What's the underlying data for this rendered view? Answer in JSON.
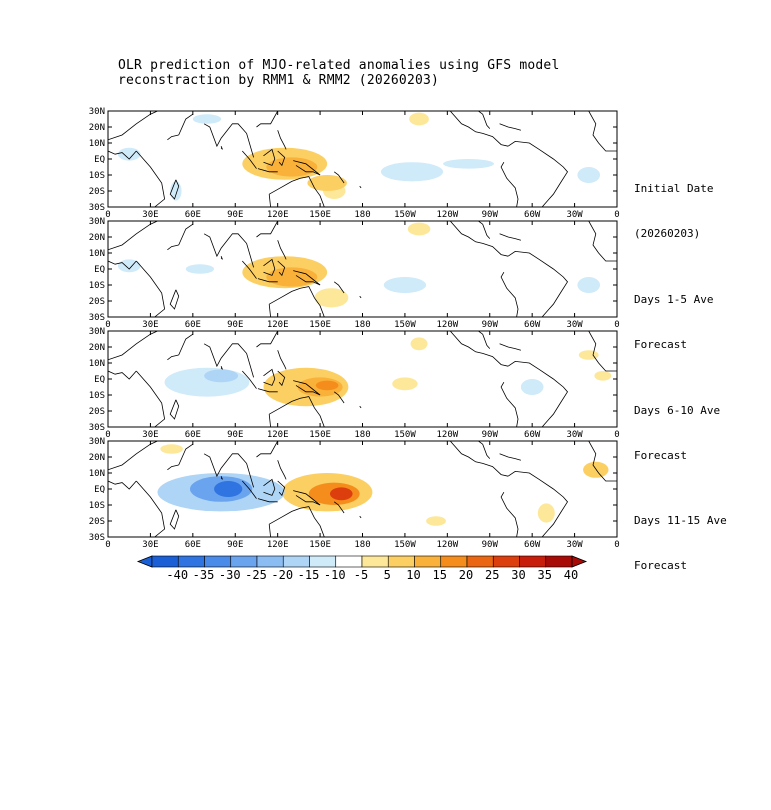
{
  "title": {
    "line1": "OLR prediction of MJO-related anomalies using GFS model",
    "line2": "reconstraction by RMM1 & RMM2 (20260203)"
  },
  "axes": {
    "lat_labels": [
      "30N",
      "20N",
      "10N",
      "EQ",
      "10S",
      "20S",
      "30S"
    ],
    "lon_labels": [
      "0",
      "30E",
      "60E",
      "90E",
      "120E",
      "150E",
      "180",
      "150W",
      "120W",
      "90W",
      "60W",
      "30W",
      "0"
    ]
  },
  "panels": [
    {
      "label_line1": "Initial Date",
      "label_line2": "(20260203)"
    },
    {
      "label_line1": "Days 1-5 Ave",
      "label_line2": "Forecast"
    },
    {
      "label_line1": "Days 6-10 Ave",
      "label_line2": "Forecast"
    },
    {
      "label_line1": "Days 11-15 Ave",
      "label_line2": "Forecast"
    }
  ],
  "colorbar": {
    "labels": [
      "-40",
      "-35",
      "-30",
      "-25",
      "-20",
      "-15",
      "-10",
      "-5",
      "5",
      "10",
      "15",
      "20",
      "25",
      "30",
      "35",
      "40"
    ],
    "colors": [
      "#1b5fd6",
      "#2f74e0",
      "#4a8ae8",
      "#6aa3ee",
      "#8bbdf2",
      "#aed4f6",
      "#cfeaf9",
      "#ffffff",
      "#fde89a",
      "#fccf63",
      "#f9b13a",
      "#f48d1c",
      "#ea6612",
      "#dc3f0d",
      "#c71d0a",
      "#a80a06"
    ]
  },
  "anomalies": [
    [
      {
        "lon": 125,
        "lat": -3,
        "rx": 30,
        "ry": 10,
        "v": 10
      },
      {
        "lon": 130,
        "lat": -5,
        "rx": 18,
        "ry": 6,
        "v": 15
      },
      {
        "lon": 155,
        "lat": -15,
        "rx": 14,
        "ry": 5,
        "v": 10
      },
      {
        "lon": 160,
        "lat": -20,
        "rx": 8,
        "ry": 5,
        "v": 5
      },
      {
        "lon": 220,
        "lat": 25,
        "rx": 7,
        "ry": 4,
        "v": 5
      },
      {
        "lon": 215,
        "lat": -8,
        "rx": 22,
        "ry": 6,
        "v": -5
      },
      {
        "lon": 255,
        "lat": -3,
        "rx": 18,
        "ry": 3,
        "v": -5
      },
      {
        "lon": 15,
        "lat": 3,
        "rx": 8,
        "ry": 4,
        "v": -5
      },
      {
        "lon": 48,
        "lat": -20,
        "rx": 4,
        "ry": 6,
        "v": -5
      },
      {
        "lon": 340,
        "lat": -10,
        "rx": 8,
        "ry": 5,
        "v": -5
      },
      {
        "lon": 70,
        "lat": 25,
        "rx": 10,
        "ry": 3,
        "v": -5
      }
    ],
    [
      {
        "lon": 125,
        "lat": -2,
        "rx": 30,
        "ry": 10,
        "v": 10
      },
      {
        "lon": 130,
        "lat": -5,
        "rx": 18,
        "ry": 6,
        "v": 15
      },
      {
        "lon": 158,
        "lat": -18,
        "rx": 12,
        "ry": 6,
        "v": 5
      },
      {
        "lon": 220,
        "lat": 25,
        "rx": 8,
        "ry": 4,
        "v": 5
      },
      {
        "lon": 210,
        "lat": -10,
        "rx": 15,
        "ry": 5,
        "v": -5
      },
      {
        "lon": 15,
        "lat": 2,
        "rx": 8,
        "ry": 4,
        "v": -5
      },
      {
        "lon": 65,
        "lat": 0,
        "rx": 10,
        "ry": 3,
        "v": -5
      },
      {
        "lon": 340,
        "lat": -10,
        "rx": 8,
        "ry": 5,
        "v": -5
      }
    ],
    [
      {
        "lon": 140,
        "lat": -5,
        "rx": 30,
        "ry": 12,
        "v": 10
      },
      {
        "lon": 150,
        "lat": -5,
        "rx": 16,
        "ry": 6,
        "v": 15
      },
      {
        "lon": 155,
        "lat": -4,
        "rx": 8,
        "ry": 3,
        "v": 20
      },
      {
        "lon": 70,
        "lat": -2,
        "rx": 30,
        "ry": 9,
        "v": -5
      },
      {
        "lon": 80,
        "lat": 2,
        "rx": 12,
        "ry": 4,
        "v": -10
      },
      {
        "lon": 220,
        "lat": 22,
        "rx": 6,
        "ry": 4,
        "v": 5
      },
      {
        "lon": 210,
        "lat": -3,
        "rx": 9,
        "ry": 4,
        "v": 5
      },
      {
        "lon": 340,
        "lat": 15,
        "rx": 7,
        "ry": 3,
        "v": 5
      },
      {
        "lon": 350,
        "lat": 2,
        "rx": 6,
        "ry": 3,
        "v": 5
      },
      {
        "lon": 300,
        "lat": -5,
        "rx": 8,
        "ry": 5,
        "v": -5
      }
    ],
    [
      {
        "lon": 155,
        "lat": -2,
        "rx": 32,
        "ry": 12,
        "v": 10
      },
      {
        "lon": 160,
        "lat": -3,
        "rx": 18,
        "ry": 7,
        "v": 20
      },
      {
        "lon": 165,
        "lat": -3,
        "rx": 8,
        "ry": 4,
        "v": 30
      },
      {
        "lon": 80,
        "lat": -2,
        "rx": 45,
        "ry": 12,
        "v": -10
      },
      {
        "lon": 80,
        "lat": 0,
        "rx": 22,
        "ry": 8,
        "v": -20
      },
      {
        "lon": 85,
        "lat": 0,
        "rx": 10,
        "ry": 5,
        "v": -30
      },
      {
        "lon": 345,
        "lat": 12,
        "rx": 9,
        "ry": 5,
        "v": 10
      },
      {
        "lon": 232,
        "lat": -20,
        "rx": 7,
        "ry": 3,
        "v": 5
      },
      {
        "lon": 310,
        "lat": -15,
        "rx": 6,
        "ry": 6,
        "v": 5
      },
      {
        "lon": 45,
        "lat": 25,
        "rx": 8,
        "ry": 3,
        "v": 5
      }
    ]
  ]
}
